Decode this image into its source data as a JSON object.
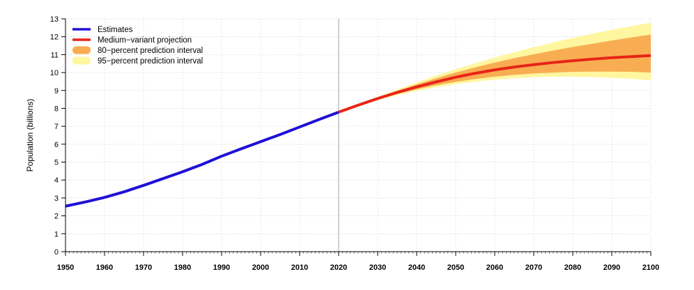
{
  "chart_data": {
    "type": "line",
    "ylabel": "Population (billions)",
    "xlabel": "",
    "xlim": [
      1950,
      2100
    ],
    "ylim": [
      0,
      13
    ],
    "x_ticks": [
      "1950",
      "1960",
      "1970",
      "1980",
      "1990",
      "2000",
      "2010",
      "2020",
      "2030",
      "2040",
      "2050",
      "2060",
      "2070",
      "2080",
      "2090",
      "2100"
    ],
    "y_ticks": [
      "0",
      "1",
      "2",
      "3",
      "4",
      "5",
      "6",
      "7",
      "8",
      "9",
      "10",
      "11",
      "12",
      "13"
    ],
    "grid": true,
    "divider_x": 2020,
    "legend_position": "top-left",
    "legend": [
      {
        "label": "Estimates",
        "kind": "line",
        "color": "#1f10d6"
      },
      {
        "label": "Medium−variant projection",
        "kind": "line",
        "color": "#e82418"
      },
      {
        "label": "80−percent prediction interval",
        "kind": "band",
        "color": "#f8ad52"
      },
      {
        "label": "95−percent prediction interval",
        "kind": "band",
        "color": "#fff6a0"
      }
    ],
    "series": [
      {
        "name": "Estimates",
        "color": "#1f10d6",
        "x": [
          1950,
          1955,
          1960,
          1965,
          1970,
          1975,
          1980,
          1985,
          1990,
          1995,
          2000,
          2005,
          2010,
          2015,
          2020
        ],
        "y": [
          2.54,
          2.77,
          3.03,
          3.34,
          3.7,
          4.08,
          4.46,
          4.87,
          5.33,
          5.74,
          6.14,
          6.54,
          6.96,
          7.38,
          7.79
        ]
      },
      {
        "name": "Medium−variant projection",
        "color": "#e82418",
        "x": [
          2020,
          2025,
          2030,
          2035,
          2040,
          2045,
          2050,
          2055,
          2060,
          2065,
          2070,
          2075,
          2080,
          2085,
          2090,
          2095,
          2100
        ],
        "y": [
          7.79,
          8.18,
          8.55,
          8.89,
          9.2,
          9.48,
          9.74,
          9.96,
          10.15,
          10.31,
          10.44,
          10.56,
          10.66,
          10.75,
          10.83,
          10.89,
          10.95
        ]
      }
    ],
    "bands": [
      {
        "name": "95−percent prediction interval",
        "color": "#fff6a0",
        "x": [
          2020,
          2025,
          2030,
          2035,
          2040,
          2045,
          2050,
          2055,
          2060,
          2065,
          2070,
          2075,
          2080,
          2085,
          2090,
          2095,
          2100
        ],
        "lower": [
          7.79,
          8.15,
          8.46,
          8.74,
          8.98,
          9.18,
          9.35,
          9.49,
          9.6,
          9.68,
          9.74,
          9.77,
          9.77,
          9.75,
          9.71,
          9.65,
          9.57
        ],
        "upper": [
          7.79,
          8.21,
          8.64,
          9.05,
          9.45,
          9.83,
          10.19,
          10.52,
          10.84,
          11.13,
          11.41,
          11.68,
          11.93,
          12.17,
          12.39,
          12.59,
          12.78
        ]
      },
      {
        "name": "80−percent prediction interval",
        "color": "#f8ad52",
        "x": [
          2020,
          2025,
          2030,
          2035,
          2040,
          2045,
          2050,
          2055,
          2060,
          2065,
          2070,
          2075,
          2080,
          2085,
          2090,
          2095,
          2100
        ],
        "lower": [
          7.79,
          8.16,
          8.49,
          8.8,
          9.06,
          9.29,
          9.48,
          9.64,
          9.77,
          9.87,
          9.95,
          10.0,
          10.04,
          10.05,
          10.05,
          10.04,
          10.0
        ],
        "upper": [
          7.79,
          8.2,
          8.61,
          8.98,
          9.34,
          9.68,
          10.0,
          10.29,
          10.56,
          10.8,
          11.02,
          11.23,
          11.43,
          11.61,
          11.79,
          11.96,
          12.12
        ]
      }
    ]
  }
}
